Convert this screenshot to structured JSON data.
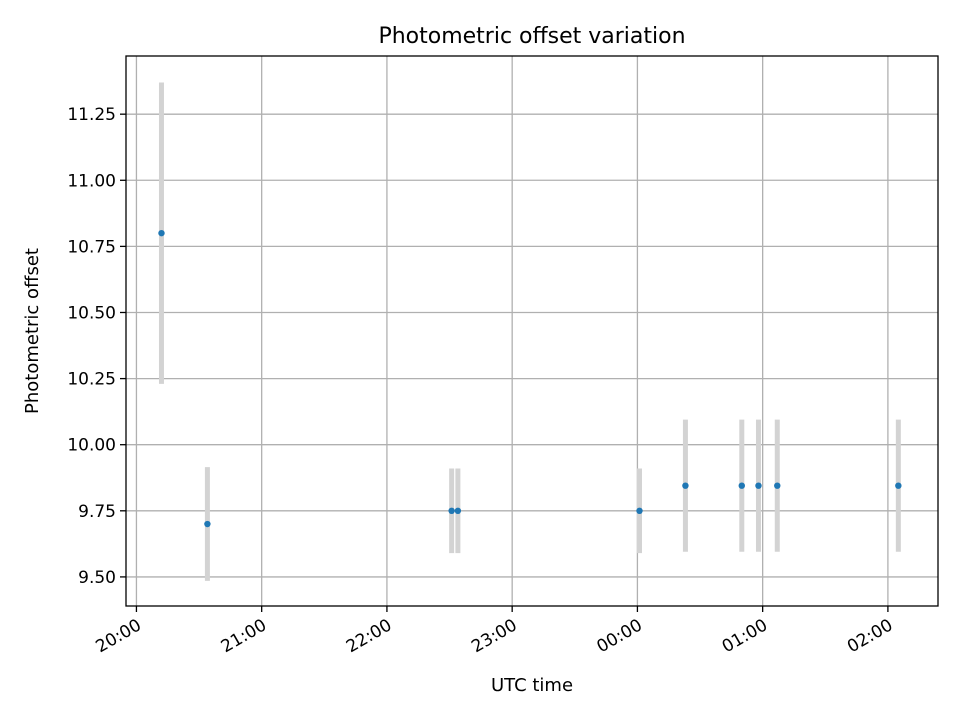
{
  "chart_data": {
    "type": "scatter",
    "title": "Photometric offset variation",
    "xlabel": "UTC time",
    "ylabel": "Photometric offset",
    "xlim": [
      "19:55",
      "02:24"
    ],
    "ylim": [
      9.39,
      11.47
    ],
    "xticks": [
      {
        "label": "20:00",
        "value": "20:00"
      },
      {
        "label": "21:00",
        "value": "21:00"
      },
      {
        "label": "22:00",
        "value": "22:00"
      },
      {
        "label": "23:00",
        "value": "23:00"
      },
      {
        "label": "00:00",
        "value": "00:00"
      },
      {
        "label": "01:00",
        "value": "01:00"
      },
      {
        "label": "02:00",
        "value": "02:00"
      }
    ],
    "yticks": [
      9.5,
      9.75,
      10.0,
      10.25,
      10.5,
      10.75,
      11.0,
      11.25
    ],
    "ytick_labels": [
      "9.50",
      "9.75",
      "10.00",
      "10.25",
      "10.50",
      "10.75",
      "11.00",
      "11.25"
    ],
    "grid": true,
    "colors": {
      "marker": "#1f77b4",
      "errorbar": "#d3d3d3",
      "grid": "#b0b0b0"
    },
    "points": [
      {
        "x": "20:12",
        "y": 10.8,
        "err": 0.57
      },
      {
        "x": "20:34",
        "y": 9.7,
        "err": 0.215
      },
      {
        "x": "22:31",
        "y": 9.75,
        "err": 0.16
      },
      {
        "x": "22:34",
        "y": 9.75,
        "err": 0.16
      },
      {
        "x": "00:01",
        "y": 9.75,
        "err": 0.16
      },
      {
        "x": "00:23",
        "y": 9.845,
        "err": 0.25
      },
      {
        "x": "00:50",
        "y": 9.845,
        "err": 0.25
      },
      {
        "x": "00:58",
        "y": 9.845,
        "err": 0.25
      },
      {
        "x": "01:07",
        "y": 9.845,
        "err": 0.25
      },
      {
        "x": "02:05",
        "y": 9.845,
        "err": 0.25
      }
    ]
  }
}
